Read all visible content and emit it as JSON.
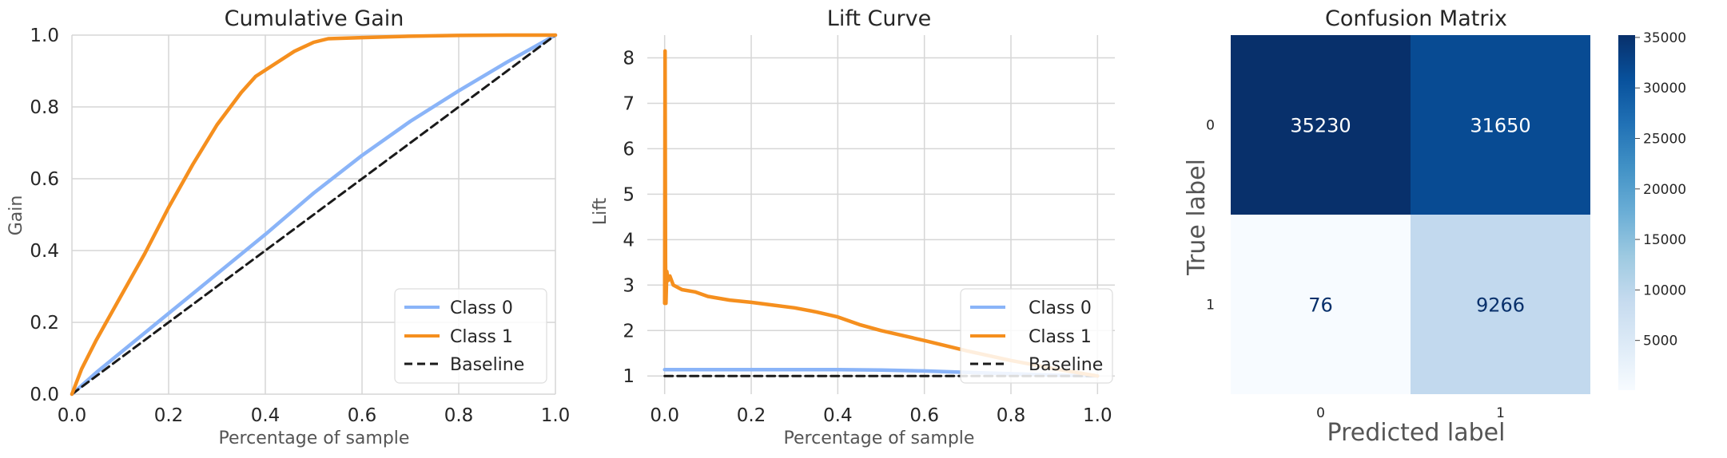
{
  "chart_data": [
    {
      "type": "line",
      "title": "Cumulative Gain",
      "xlabel": "Percentage of sample",
      "ylabel": "Gain",
      "xlim": [
        0,
        1
      ],
      "ylim": [
        0,
        1
      ],
      "xticks": [
        0.0,
        0.2,
        0.4,
        0.6,
        0.8,
        1.0
      ],
      "yticks": [
        0.0,
        0.2,
        0.4,
        0.6,
        0.8,
        1.0
      ],
      "xtick_labels": [
        "0.0",
        "0.2",
        "0.4",
        "0.6",
        "0.8",
        "1.0"
      ],
      "ytick_labels": [
        "0.0",
        "0.2",
        "0.4",
        "0.6",
        "0.8",
        "1.0"
      ],
      "grid": true,
      "legend": "lower-right",
      "series": [
        {
          "name": "Class 0",
          "color": "#8ab4f8",
          "dash": false,
          "x": [
            0,
            0.05,
            0.1,
            0.15,
            0.2,
            0.3,
            0.4,
            0.5,
            0.6,
            0.7,
            0.8,
            0.9,
            1.0
          ],
          "y": [
            0,
            0.06,
            0.115,
            0.17,
            0.225,
            0.335,
            0.445,
            0.56,
            0.665,
            0.76,
            0.845,
            0.925,
            1.0
          ]
        },
        {
          "name": "Class 1",
          "color": "#f58f1e",
          "dash": false,
          "x": [
            0,
            0.02,
            0.05,
            0.1,
            0.15,
            0.2,
            0.25,
            0.3,
            0.35,
            0.38,
            0.42,
            0.46,
            0.5,
            0.53,
            0.6,
            0.7,
            0.8,
            0.9,
            1.0
          ],
          "y": [
            0,
            0.07,
            0.15,
            0.27,
            0.39,
            0.52,
            0.64,
            0.75,
            0.84,
            0.885,
            0.92,
            0.955,
            0.98,
            0.99,
            0.993,
            0.997,
            0.999,
            1.0,
            1.0
          ]
        },
        {
          "name": "Baseline",
          "color": "#1a1a1a",
          "dash": true,
          "x": [
            0,
            1
          ],
          "y": [
            0,
            1
          ]
        }
      ]
    },
    {
      "type": "line",
      "title": "Lift Curve",
      "xlabel": "Percentage of sample",
      "ylabel": "Lift",
      "xlim": [
        -0.04,
        1.04
      ],
      "ylim": [
        0.6,
        8.5
      ],
      "xticks": [
        0.0,
        0.2,
        0.4,
        0.6,
        0.8,
        1.0
      ],
      "yticks": [
        1,
        2,
        3,
        4,
        5,
        6,
        7,
        8
      ],
      "xtick_labels": [
        "0.0",
        "0.2",
        "0.4",
        "0.6",
        "0.8",
        "1.0"
      ],
      "ytick_labels": [
        "1",
        "2",
        "3",
        "4",
        "5",
        "6",
        "7",
        "8"
      ],
      "grid": true,
      "legend": "lower-right",
      "series": [
        {
          "name": "Class 0",
          "color": "#8ab4f8",
          "dash": false,
          "x": [
            0.0,
            0.1,
            0.2,
            0.3,
            0.4,
            0.5,
            0.6,
            0.7,
            0.8,
            0.9,
            1.0
          ],
          "y": [
            1.14,
            1.14,
            1.14,
            1.14,
            1.14,
            1.13,
            1.11,
            1.08,
            1.05,
            1.02,
            1.0
          ]
        },
        {
          "name": "Class 1",
          "color": "#f58f1e",
          "dash": false,
          "x": [
            0.0,
            0.001,
            0.002,
            0.003,
            0.005,
            0.008,
            0.012,
            0.02,
            0.04,
            0.07,
            0.1,
            0.15,
            0.2,
            0.25,
            0.3,
            0.35,
            0.4,
            0.45,
            0.5,
            0.6,
            0.7,
            0.8,
            0.9,
            1.0
          ],
          "y": [
            2.6,
            8.15,
            3.5,
            2.6,
            3.3,
            3.1,
            3.2,
            3.0,
            2.9,
            2.85,
            2.75,
            2.67,
            2.62,
            2.56,
            2.5,
            2.41,
            2.3,
            2.13,
            2.0,
            1.78,
            1.55,
            1.34,
            1.16,
            1.0
          ]
        },
        {
          "name": "Baseline",
          "color": "#1a1a1a",
          "dash": true,
          "x": [
            0.0,
            1.0
          ],
          "y": [
            1.0,
            1.0
          ]
        }
      ]
    },
    {
      "type": "heatmap",
      "title": "Confusion Matrix",
      "xlabel": "Predicted label",
      "ylabel": "True label",
      "row_labels": [
        "0",
        "1"
      ],
      "col_labels": [
        "0",
        "1"
      ],
      "values": [
        [
          35230,
          31650
        ],
        [
          76,
          9266
        ]
      ],
      "value_labels": [
        [
          "35230",
          "31650"
        ],
        [
          "76",
          "9266"
        ]
      ],
      "colorbar_ticks": [
        5000,
        10000,
        15000,
        20000,
        25000,
        30000,
        35000
      ],
      "colorbar_tick_labels": [
        "5000",
        "10000",
        "15000",
        "20000",
        "25000",
        "30000",
        "35000"
      ],
      "colorbar_range": [
        76,
        35230
      ],
      "colormap": "Blues"
    }
  ]
}
